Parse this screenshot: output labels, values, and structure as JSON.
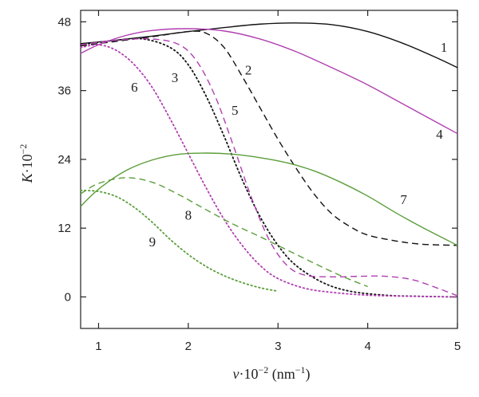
{
  "chart_data": {
    "type": "line",
    "xlabel_main": "ν",
    "xlabel_scale": "·10",
    "xlabel_exp": "−2",
    "xlabel_unit": " (nm",
    "xlabel_unit_exp": "−1",
    "xlabel_close": ")",
    "ylabel_main": "K",
    "ylabel_scale": "·10",
    "ylabel_exp": "−2",
    "xlim": [
      0.8,
      5.0
    ],
    "ylim": [
      -5.5,
      50.0
    ],
    "xticks": [
      1,
      2,
      3,
      4,
      5
    ],
    "yticks": [
      0,
      12,
      24,
      36,
      48
    ],
    "grid": false,
    "colors": {
      "black": "#111111",
      "magenta": "#b13fb1",
      "green": "#5a9e3a"
    },
    "series": [
      {
        "name": "1",
        "color": "black",
        "dash": "solid",
        "x": [
          0.8,
          1.2,
          1.6,
          2.0,
          2.4,
          2.8,
          3.2,
          3.6,
          4.0,
          4.4,
          4.8,
          5.0
        ],
        "y": [
          44.2,
          44.8,
          45.5,
          46.3,
          47.0,
          47.6,
          47.8,
          47.5,
          46.3,
          44.2,
          41.5,
          40.0
        ]
      },
      {
        "name": "2",
        "color": "black",
        "dash": "dash",
        "x": [
          0.8,
          1.2,
          1.6,
          2.0,
          2.2,
          2.4,
          2.6,
          2.8,
          3.0,
          3.2,
          3.4,
          3.6,
          3.8,
          4.0,
          4.3,
          4.6,
          5.0
        ],
        "y": [
          43.8,
          44.6,
          45.4,
          46.3,
          46.0,
          43.5,
          38.5,
          33.0,
          27.5,
          22.5,
          18.0,
          14.5,
          12.3,
          10.8,
          9.8,
          9.2,
          9.0
        ]
      },
      {
        "name": "3",
        "color": "black",
        "dash": "dot",
        "x": [
          0.8,
          1.2,
          1.5,
          1.8,
          2.0,
          2.2,
          2.4,
          2.6,
          2.8,
          3.0,
          3.2,
          3.5,
          3.8,
          4.2,
          4.6,
          5.0
        ],
        "y": [
          44.0,
          44.8,
          45.0,
          43.5,
          40.5,
          35.0,
          28.0,
          20.5,
          14.0,
          9.0,
          5.5,
          2.5,
          1.0,
          0.3,
          0.1,
          0.0
        ]
      },
      {
        "name": "4",
        "color": "magenta",
        "dash": "solid",
        "x": [
          0.8,
          1.0,
          1.3,
          1.6,
          2.0,
          2.4,
          2.8,
          3.2,
          3.6,
          4.0,
          4.4,
          4.8,
          5.0
        ],
        "y": [
          42.5,
          44.0,
          45.6,
          46.5,
          46.8,
          46.4,
          45.0,
          42.8,
          40.0,
          37.0,
          33.6,
          30.2,
          28.5
        ]
      },
      {
        "name": "5",
        "color": "magenta",
        "dash": "dash",
        "x": [
          0.8,
          1.2,
          1.6,
          1.9,
          2.1,
          2.3,
          2.5,
          2.7,
          2.9,
          3.1,
          3.3,
          3.6,
          3.9,
          4.2,
          4.5,
          4.8,
          5.0
        ],
        "y": [
          44.0,
          44.8,
          45.0,
          44.0,
          41.0,
          35.0,
          26.5,
          17.5,
          10.0,
          5.5,
          3.8,
          3.5,
          3.6,
          3.6,
          3.0,
          1.4,
          0.2
        ]
      },
      {
        "name": "6",
        "color": "magenta",
        "dash": "dot",
        "x": [
          0.8,
          1.0,
          1.2,
          1.4,
          1.6,
          1.8,
          2.0,
          2.2,
          2.4,
          2.6,
          2.8,
          3.0,
          3.3,
          3.6,
          4.0,
          4.5,
          5.0
        ],
        "y": [
          43.5,
          44.0,
          43.0,
          40.5,
          36.5,
          31.0,
          25.0,
          19.0,
          13.5,
          9.0,
          5.5,
          3.2,
          1.5,
          0.8,
          0.3,
          0.1,
          0.0
        ]
      },
      {
        "name": "7",
        "color": "green",
        "dash": "solid",
        "x": [
          0.8,
          1.0,
          1.3,
          1.6,
          1.9,
          2.2,
          2.5,
          2.8,
          3.1,
          3.4,
          3.7,
          4.0,
          4.3,
          4.6,
          5.0
        ],
        "y": [
          15.8,
          18.8,
          22.0,
          23.9,
          24.9,
          25.1,
          24.9,
          24.3,
          23.4,
          22.0,
          20.0,
          17.6,
          14.8,
          12.2,
          9.0
        ]
      },
      {
        "name": "8",
        "color": "green",
        "dash": "dash",
        "x": [
          0.8,
          1.0,
          1.3,
          1.6,
          1.9,
          2.2,
          2.5,
          2.8,
          3.1,
          3.4,
          3.7,
          4.0
        ],
        "y": [
          18.0,
          19.8,
          20.8,
          20.0,
          17.8,
          15.2,
          12.7,
          10.5,
          8.2,
          5.9,
          3.7,
          1.8
        ]
      },
      {
        "name": "9",
        "color": "green",
        "dash": "dot",
        "x": [
          0.8,
          1.0,
          1.2,
          1.4,
          1.6,
          1.8,
          2.0,
          2.2,
          2.4,
          2.6,
          2.8,
          3.0
        ],
        "y": [
          18.6,
          18.4,
          17.5,
          15.6,
          13.0,
          10.0,
          7.4,
          5.3,
          3.7,
          2.5,
          1.6,
          1.0
        ]
      }
    ],
    "curve_labels": [
      {
        "text": "1",
        "x": 4.85,
        "y": 42.8
      },
      {
        "text": "2",
        "x": 2.67,
        "y": 38.8
      },
      {
        "text": "3",
        "x": 1.85,
        "y": 37.5
      },
      {
        "text": "4",
        "x": 4.8,
        "y": 27.6
      },
      {
        "text": "5",
        "x": 2.52,
        "y": 31.8
      },
      {
        "text": "6",
        "x": 1.4,
        "y": 35.8
      },
      {
        "text": "7",
        "x": 4.4,
        "y": 16.2
      },
      {
        "text": "8",
        "x": 2.0,
        "y": 13.5
      },
      {
        "text": "9",
        "x": 1.6,
        "y": 8.8
      }
    ]
  }
}
